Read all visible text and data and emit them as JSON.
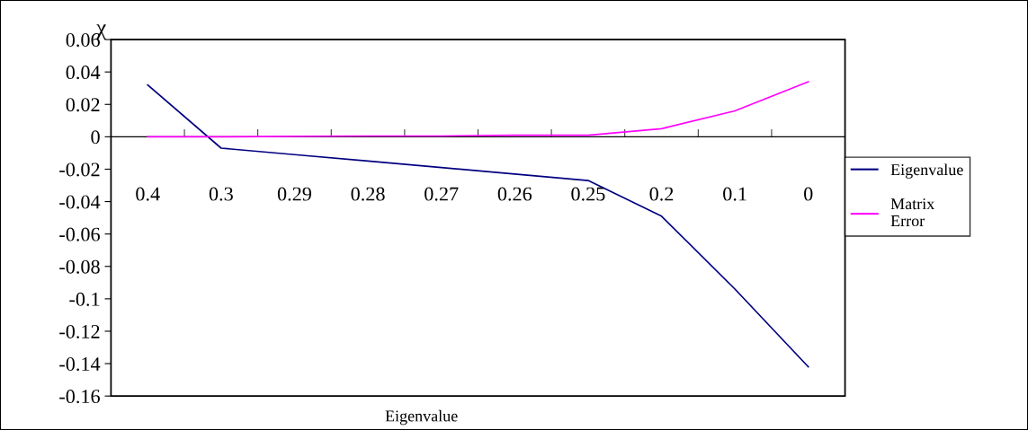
{
  "chart_data": {
    "type": "line",
    "ylabel": "χ",
    "xlabel": "Eigenvalue",
    "categories": [
      "0.4",
      "0.3",
      "0.29",
      "0.28",
      "0.27",
      "0.26",
      "0.25",
      "0.2",
      "0.1",
      "0"
    ],
    "series": [
      {
        "name": "Eigenvalue",
        "color": "#000080",
        "values": [
          0.032,
          -0.007,
          -0.011,
          -0.015,
          -0.019,
          -0.023,
          -0.027,
          -0.049,
          -0.094,
          -0.142
        ]
      },
      {
        "name": "Matrix Error",
        "color": "#ff00ff",
        "values": [
          0,
          0,
          0.0003,
          0.0005,
          0.0005,
          0.001,
          0.001,
          0.005,
          0.016,
          0.034
        ]
      }
    ],
    "ylim": [
      -0.16,
      0.06
    ],
    "yticks": [
      {
        "value": -0.16,
        "label": "-0.16"
      },
      {
        "value": -0.14,
        "label": "-0.14"
      },
      {
        "value": -0.12,
        "label": "-0.12"
      },
      {
        "value": -0.1,
        "label": "-0.1"
      },
      {
        "value": -0.08,
        "label": "-0.08"
      },
      {
        "value": -0.06,
        "label": "-0.06"
      },
      {
        "value": -0.04,
        "label": "-0.04"
      },
      {
        "value": -0.02,
        "label": "-0.02"
      },
      0,
      0.02,
      0.04,
      0.06
    ],
    "grid": false,
    "legend": "right",
    "marker": "none",
    "line_style": "solid"
  }
}
